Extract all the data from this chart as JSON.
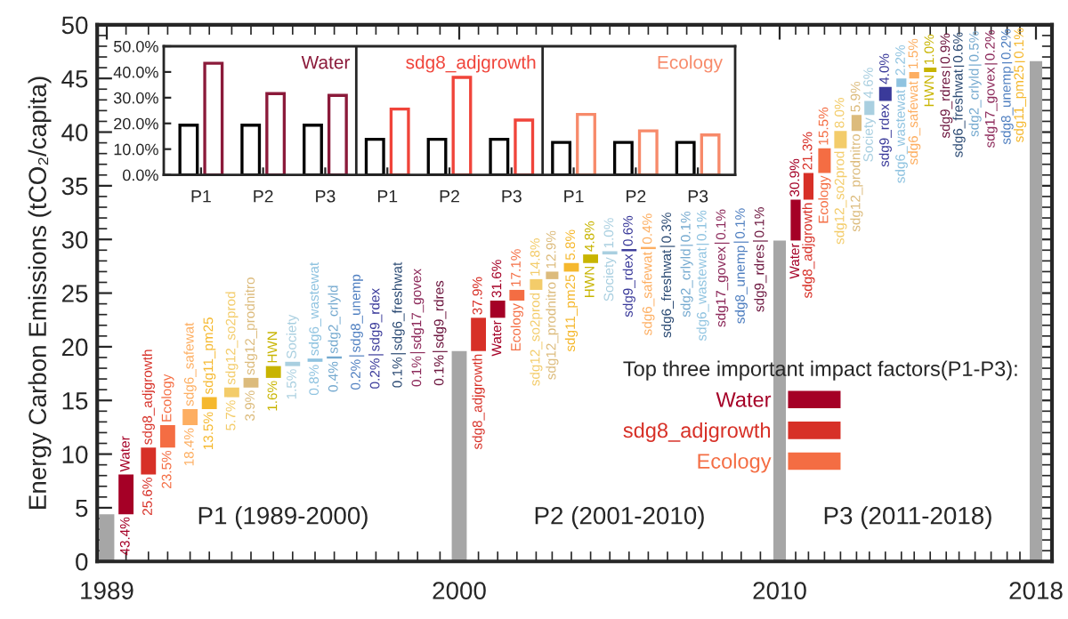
{
  "chart_data": [
    {
      "type": "bar",
      "categories": [
        "P1",
        "P2",
        "P3",
        "P1",
        "P2",
        "P3",
        "P1",
        "P2",
        "P3"
      ],
      "series": [
        {
          "color": "#000000",
          "values": [
            19.3,
            19.3,
            19.3,
            13.8,
            13.8,
            13.8,
            12.6,
            12.6,
            12.6
          ]
        },
        {
          "colors": [
            "#8b1a3a",
            "#8b1a3a",
            "#8b1a3a",
            "#f0443a",
            "#f0443a",
            "#f0443a",
            "#f78a6a",
            "#f78a6a",
            "#f78a6a"
          ],
          "values": [
            43.4,
            31.6,
            30.9,
            25.6,
            37.9,
            21.3,
            23.5,
            17.1,
            15.5
          ]
        }
      ],
      "annotations": [
        "Water",
        "sdg8_adjgrowth",
        "Ecology"
      ],
      "ylim": [
        0,
        50
      ],
      "yticks": [
        {
          "value": 0,
          "label": "0.0%"
        },
        {
          "value": 10,
          "label": "10.0%"
        },
        {
          "value": 20,
          "label": "20.0%"
        },
        {
          "value": 30,
          "label": "30.0%"
        },
        {
          "value": 40,
          "label": "40.0%"
        },
        {
          "value": 50,
          "label": "50.0%"
        }
      ]
    },
    {
      "type": "bar",
      "ylabel": "Energy Carbon Emissions (tCO₂/capita)",
      "legend_title": "Top three important impact factors(P1-P3):",
      "legend": "bottom right",
      "x": [
        1989,
        1989.6,
        1990.3,
        1990.9,
        1991.6,
        1992.2,
        1992.9,
        1993.5,
        1994.2,
        1994.8,
        1995.5,
        1996.1,
        1996.8,
        1997.4,
        1998.1,
        1998.7,
        1999.4,
        2000,
        2000.6,
        2001.2,
        2001.8,
        2002.4,
        2002.9,
        2003.5,
        2004.1,
        2004.7,
        2005.3,
        2005.9,
        2006.5,
        2007.1,
        2007.6,
        2008.2,
        2008.8,
        2009.4,
        2010,
        2010.5,
        2010.9,
        2011.4,
        2011.9,
        2012.4,
        2012.8,
        2013.3,
        2013.8,
        2014.2,
        2014.7,
        2015.2,
        2015.6,
        2016.1,
        2016.6,
        2017.1,
        2017.5,
        2018
      ],
      "xlim": [
        1988.7,
        2018.5
      ],
      "xticks": [
        1989,
        2000,
        2010,
        2018
      ],
      "series": [
        {
          "name": "Water",
          "color": "#a50026",
          "values": [
            null,
            3.7,
            null,
            null,
            null,
            null,
            null,
            null,
            null,
            null,
            null,
            null,
            null,
            null,
            null,
            null,
            null,
            null,
            null,
            1.6,
            null,
            null,
            null,
            null,
            null,
            null,
            null,
            null,
            null,
            null,
            null,
            null,
            null,
            null,
            null,
            3.8,
            null,
            null,
            null,
            null,
            null,
            null,
            null,
            null,
            null,
            null,
            null,
            null,
            null,
            null,
            null,
            null
          ],
          "base": [
            null,
            4.4,
            null,
            null,
            null,
            null,
            null,
            null,
            null,
            null,
            null,
            null,
            null,
            null,
            null,
            null,
            null,
            null,
            null,
            22.7,
            null,
            null,
            null,
            null,
            null,
            null,
            null,
            null,
            null,
            null,
            null,
            null,
            null,
            null,
            null,
            29.9,
            null,
            null,
            null,
            null,
            null,
            null,
            null,
            null,
            null,
            null,
            null,
            null,
            null,
            null,
            null,
            null
          ]
        },
        {
          "name": "sdg8_adjgrowth",
          "color": "#d73027",
          "values": [
            null,
            null,
            2.5,
            null,
            null,
            null,
            null,
            null,
            null,
            null,
            null,
            null,
            null,
            null,
            null,
            null,
            null,
            null,
            3.1,
            null,
            null,
            null,
            null,
            null,
            null,
            null,
            null,
            null,
            null,
            null,
            null,
            null,
            null,
            null,
            null,
            null,
            2.5,
            null,
            null,
            null,
            null,
            null,
            null,
            null,
            null,
            null,
            null,
            null,
            null,
            null,
            null,
            null
          ],
          "base": [
            null,
            null,
            8.1,
            null,
            null,
            null,
            null,
            null,
            null,
            null,
            null,
            null,
            null,
            null,
            null,
            null,
            null,
            null,
            19.6,
            null,
            null,
            null,
            null,
            null,
            null,
            null,
            null,
            null,
            null,
            null,
            null,
            null,
            null,
            null,
            null,
            null,
            33.7,
            null,
            null,
            null,
            null,
            null,
            null,
            null,
            null,
            null,
            null,
            null,
            null,
            null,
            null,
            null
          ]
        },
        {
          "name": "Ecology",
          "color": "#f46d43",
          "values": [
            null,
            null,
            null,
            2.1,
            null,
            null,
            null,
            null,
            null,
            null,
            null,
            null,
            null,
            null,
            null,
            null,
            null,
            null,
            null,
            null,
            1.0,
            null,
            null,
            null,
            null,
            null,
            null,
            null,
            null,
            null,
            null,
            null,
            null,
            null,
            null,
            null,
            null,
            2.3,
            null,
            null,
            null,
            null,
            null,
            null,
            null,
            null,
            null,
            null,
            null,
            null,
            null,
            null
          ],
          "base": [
            null,
            null,
            null,
            10.6,
            null,
            null,
            null,
            null,
            null,
            null,
            null,
            null,
            null,
            null,
            null,
            null,
            null,
            null,
            null,
            null,
            24.3,
            null,
            null,
            null,
            null,
            null,
            null,
            null,
            null,
            null,
            null,
            null,
            null,
            null,
            null,
            null,
            null,
            36.2,
            null,
            null,
            null,
            null,
            null,
            null,
            null,
            null,
            null,
            null,
            null,
            null,
            null,
            null
          ]
        },
        {
          "values": [
            4.4,
            null,
            null,
            null,
            1.5,
            1.1,
            0.9,
            0.9,
            1.1,
            0.4,
            0.3,
            0.2,
            0.1,
            0.1,
            0.1,
            0.1,
            0.1,
            19.6,
            null,
            null,
            null,
            1.0,
            0.7,
            0.8,
            0.8,
            0.3,
            0.2,
            0.2,
            0.1,
            0.1,
            0.1,
            0.1,
            0.1,
            0.1,
            29.9,
            null,
            null,
            null,
            1.6,
            1.5,
            1.3,
            1.3,
            0.8,
            0.6,
            0.4,
            0.1,
            0.1,
            0.1,
            0.1,
            0.1,
            0.1,
            46.6
          ],
          "base": [
            0,
            null,
            null,
            null,
            12.7,
            14.2,
            15.3,
            16.2,
            17.1,
            18.2,
            18.6,
            18.9,
            19.1,
            19.2,
            19.3,
            19.4,
            19.5,
            0,
            null,
            null,
            null,
            25.3,
            26.3,
            27.0,
            27.8,
            28.6,
            28.9,
            29.1,
            29.3,
            29.4,
            29.5,
            29.6,
            29.7,
            29.8,
            0,
            null,
            null,
            null,
            38.5,
            40.1,
            41.6,
            42.9,
            44.2,
            45.0,
            45.6,
            46.0,
            46.1,
            46.2,
            46.3,
            46.4,
            46.5,
            0
          ],
          "colors": [
            "#a6a6a6",
            null,
            null,
            null,
            "#fdae61",
            "#f5b82e",
            "#f3cc6a",
            "#dcbb7c",
            "#c8b400",
            "#a9cfe0",
            "#8fc3e0",
            "#74a9cf",
            "#4f7fc0",
            "#3a3a9a",
            "#2b4a73",
            "#8e2c5c",
            "#6e1840",
            "#a6a6a6",
            null,
            null,
            null,
            "#f3cc6a",
            "#dcbb7c",
            "#f5b82e",
            "#c8b400",
            "#a9cfe0",
            "#3a3a9a",
            "#fdae61",
            "#2b4a73",
            "#74a9cf",
            "#8fc3e0",
            "#8e2c5c",
            "#4f7fc0",
            "#6e1840",
            "#a6a6a6",
            null,
            null,
            null,
            "#f3cc6a",
            "#dcbb7c",
            "#a9cfe0",
            "#3a3a9a",
            "#8fc3e0",
            "#fdae61",
            "#c8b400",
            "#6e1840",
            "#2b4a73",
            "#74a9cf",
            "#8e2c5c",
            "#4f7fc0",
            "#f5b82e",
            "#a6a6a6"
          ]
        }
      ],
      "ylim": [
        0,
        50
      ],
      "yticks": [
        0,
        5,
        10,
        15,
        20,
        25,
        30,
        35,
        40,
        45,
        50
      ],
      "annotations": [
        "P1 (1989-2000)",
        "P2 (2001-2010)",
        "P3 (2011-2018)",
        {
          "text": "Water",
          "x": 1989.6,
          "y": 8.1
        },
        {
          "text": "43.4%",
          "x": 1989.6,
          "y": 4.4
        },
        {
          "text": "sdg8_adjgrowth",
          "x": 1990.3,
          "y": 10.6
        },
        {
          "text": "25.6%",
          "x": 1990.3,
          "y": 8.1
        },
        {
          "text": "Ecology",
          "x": 1990.9,
          "y": 12.7
        },
        {
          "text": "23.5%",
          "x": 1990.9,
          "y": 10.6
        },
        {
          "text": "sdg6_safewat",
          "x": 1991.6,
          "y": 14.2
        },
        {
          "text": "18.4%",
          "x": 1991.6,
          "y": 12.7
        },
        {
          "text": "sdg11_pm25",
          "x": 1992.2,
          "y": 15.3
        },
        {
          "text": "13.5%",
          "x": 1992.2,
          "y": 14.2
        },
        {
          "text": "sdg12_so2prod",
          "x": 1992.9,
          "y": 16.2
        },
        {
          "text": "5.7%",
          "x": 1992.9,
          "y": 15.3
        },
        {
          "text": "sdg12_prodnitro",
          "x": 1993.5,
          "y": 17.1
        },
        {
          "text": "3.9%",
          "x": 1993.5,
          "y": 16.2
        },
        {
          "text": "HWN",
          "x": 1994.2,
          "y": 18.2
        },
        {
          "text": "1.6%",
          "x": 1994.2,
          "y": 17.1
        },
        {
          "text": "Society",
          "x": 1994.8,
          "y": 18.6
        },
        {
          "text": "1.5%",
          "x": 1994.8,
          "y": 18.2
        },
        {
          "text": "sdg6_wastewat",
          "x": 1995.5,
          "y": 18.9
        },
        {
          "text": "0.8%",
          "x": 1995.5,
          "y": 18.6
        },
        {
          "text": "sdg2_crlyld",
          "x": 1996.1,
          "y": 19.1
        },
        {
          "text": "0.4%",
          "x": 1996.1,
          "y": 18.9
        },
        {
          "text": "sdg8_unemp",
          "x": 1996.8,
          "y": 19.2
        },
        {
          "text": "0.2%",
          "x": 1996.8,
          "y": 19.1
        },
        {
          "text": "sdg9_rdex",
          "x": 1997.4,
          "y": 19.3
        },
        {
          "text": "0.2%",
          "x": 1997.4,
          "y": 19.2
        },
        {
          "text": "sdg6_freshwat",
          "x": 1998.1,
          "y": 19.4
        },
        {
          "text": "0.1%",
          "x": 1998.1,
          "y": 19.3
        },
        {
          "text": "sdg17_govex",
          "x": 1998.7,
          "y": 19.5
        },
        {
          "text": "0.1%",
          "x": 1998.7,
          "y": 19.4
        },
        {
          "text": "sdg9_rdres",
          "x": 1999.4,
          "y": 19.6
        },
        {
          "text": "0.1%",
          "x": 1999.4,
          "y": 19.5
        },
        {
          "text": "37.9%",
          "x": 2000.6,
          "y": 22.7
        },
        {
          "text": "sdg8_adjgrowth",
          "x": 2000.6,
          "y": 19.6
        },
        {
          "text": "31.6%",
          "x": 2001.2,
          "y": 24.3
        },
        {
          "text": "Water",
          "x": 2001.2,
          "y": 22.7
        },
        {
          "text": "17.1%",
          "x": 2001.8,
          "y": 25.3
        },
        {
          "text": "Ecology",
          "x": 2001.8,
          "y": 24.3
        },
        {
          "text": "14.8%",
          "x": 2002.4,
          "y": 26.3
        },
        {
          "text": "sdg12_so2prod",
          "x": 2002.4,
          "y": 25.3
        },
        {
          "text": "12.9%",
          "x": 2002.9,
          "y": 27.0
        },
        {
          "text": "sdg12_prodnitro",
          "x": 2002.9,
          "y": 26.3
        },
        {
          "text": "5.8%",
          "x": 2003.5,
          "y": 27.8
        },
        {
          "text": "sdg11_pm25",
          "x": 2003.5,
          "y": 27.0
        },
        {
          "text": "4.8%",
          "x": 2004.1,
          "y": 28.6
        },
        {
          "text": "HWN",
          "x": 2004.1,
          "y": 27.8
        },
        {
          "text": "1.0%",
          "x": 2004.7,
          "y": 28.9
        },
        {
          "text": "Society",
          "x": 2004.7,
          "y": 28.6
        },
        {
          "text": "0.6%",
          "x": 2005.3,
          "y": 29.1
        },
        {
          "text": "sdg9_rdex",
          "x": 2005.3,
          "y": 28.9
        },
        {
          "text": "0.4%",
          "x": 2005.9,
          "y": 29.3
        },
        {
          "text": "sdg6_safewat",
          "x": 2005.9,
          "y": 29.1
        },
        {
          "text": "0.3%",
          "x": 2006.5,
          "y": 29.4
        },
        {
          "text": "sdg6_freshwat",
          "x": 2006.5,
          "y": 29.3
        },
        {
          "text": "0.1%",
          "x": 2007.1,
          "y": 29.5
        },
        {
          "text": "sdg2_crlyld",
          "x": 2007.1,
          "y": 29.4
        },
        {
          "text": "0.1%",
          "x": 2007.6,
          "y": 29.6
        },
        {
          "text": "sdg6_wastewat",
          "x": 2007.6,
          "y": 29.5
        },
        {
          "text": "0.1%",
          "x": 2008.2,
          "y": 29.7
        },
        {
          "text": "sdg17_govex",
          "x": 2008.2,
          "y": 29.6
        },
        {
          "text": "0.1%",
          "x": 2008.8,
          "y": 29.8
        },
        {
          "text": "sdg8_unemp",
          "x": 2008.8,
          "y": 29.7
        },
        {
          "text": "0.1%",
          "x": 2009.4,
          "y": 29.9
        },
        {
          "text": "sdg9_rdres",
          "x": 2009.4,
          "y": 29.8
        },
        {
          "text": "30.9%",
          "x": 2010.5,
          "y": 33.7
        },
        {
          "text": "Water",
          "x": 2010.5,
          "y": 29.9
        },
        {
          "text": "21.3%",
          "x": 2010.9,
          "y": 36.2
        },
        {
          "text": "sdg8_adjgrowth",
          "x": 2010.9,
          "y": 33.7
        },
        {
          "text": "15.5%",
          "x": 2011.4,
          "y": 38.5
        },
        {
          "text": "Ecology",
          "x": 2011.4,
          "y": 36.2
        },
        {
          "text": "8.0%",
          "x": 2011.9,
          "y": 40.1
        },
        {
          "text": "sdg12_so2prod",
          "x": 2011.9,
          "y": 38.5
        },
        {
          "text": "5.9%",
          "x": 2012.4,
          "y": 41.6
        },
        {
          "text": "sdg12_prodnitro",
          "x": 2012.4,
          "y": 40.1
        },
        {
          "text": "4.6%",
          "x": 2012.8,
          "y": 42.9
        },
        {
          "text": "Society",
          "x": 2012.8,
          "y": 41.6
        },
        {
          "text": "4.0%",
          "x": 2013.3,
          "y": 44.2
        },
        {
          "text": "sdg9_rdex",
          "x": 2013.3,
          "y": 42.9
        },
        {
          "text": "2.2%",
          "x": 2013.8,
          "y": 45.0
        },
        {
          "text": "sdg6_wastewat",
          "x": 2013.8,
          "y": 44.2
        },
        {
          "text": "1.5%",
          "x": 2014.2,
          "y": 45.6
        },
        {
          "text": "sdg6_safewat",
          "x": 2014.2,
          "y": 45.0
        },
        {
          "text": "1.0%",
          "x": 2014.7,
          "y": 46.0
        },
        {
          "text": "HWN",
          "x": 2014.7,
          "y": 45.6
        },
        {
          "text": "0.9%",
          "x": 2015.2,
          "y": 46.1
        },
        {
          "text": "sdg9_rdres",
          "x": 2015.2,
          "y": 46.0
        },
        {
          "text": "0.6%",
          "x": 2015.6,
          "y": 46.2
        },
        {
          "text": "sdg6_freshwat",
          "x": 2015.6,
          "y": 46.1
        },
        {
          "text": "0.5%",
          "x": 2016.1,
          "y": 46.3
        },
        {
          "text": "sdg2_crlyld",
          "x": 2016.1,
          "y": 46.2
        },
        {
          "text": "0.2%",
          "x": 2016.6,
          "y": 46.4
        },
        {
          "text": "sdg17_govex",
          "x": 2016.6,
          "y": 46.3
        },
        {
          "text": "0.2%",
          "x": 2017.1,
          "y": 46.5
        },
        {
          "text": "sdg8_unemp",
          "x": 2017.1,
          "y": 46.4
        },
        {
          "text": "0.1%",
          "x": 2017.5,
          "y": 46.6
        },
        {
          "text": "sdg11_pm25",
          "x": 2017.5,
          "y": 46.5
        }
      ]
    }
  ]
}
